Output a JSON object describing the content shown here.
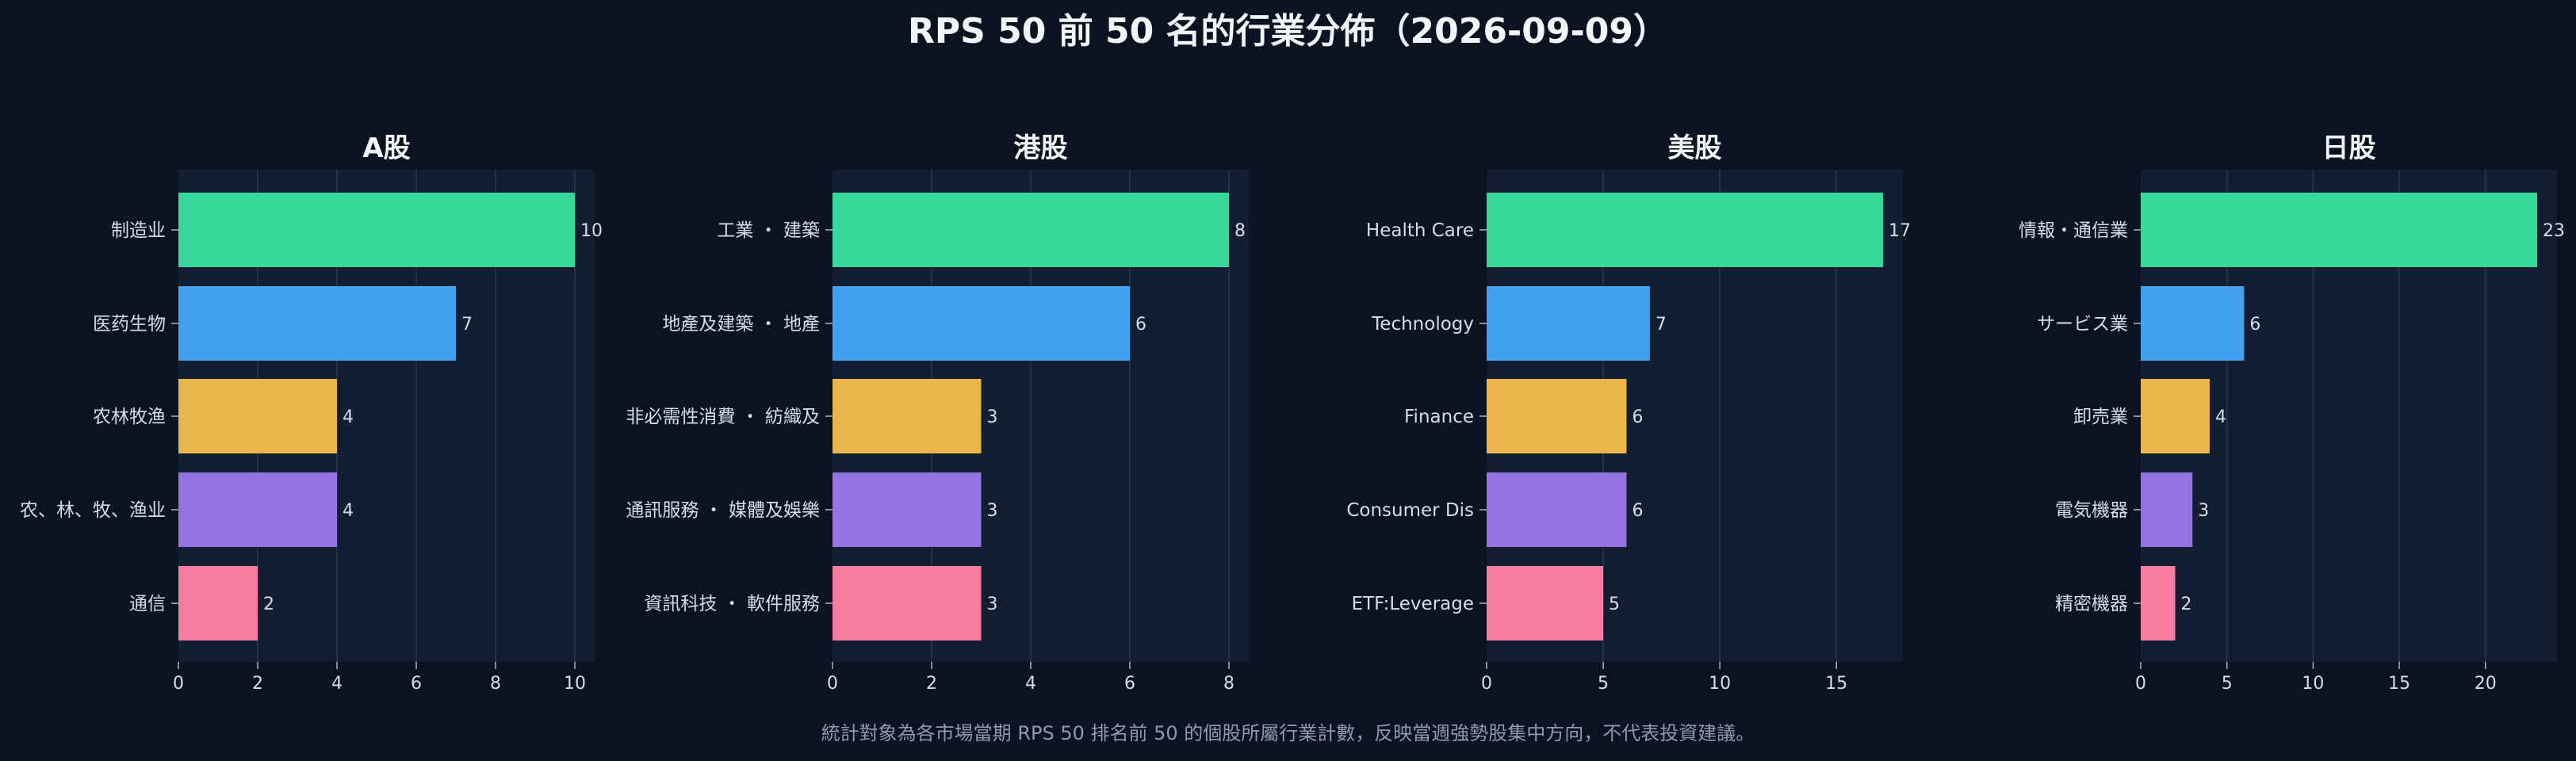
{
  "title": "RPS 50 前 50 名的行業分佈（2026-09-09）",
  "footnote": "統計對象為各市場當期 RPS 50 排名前 50 的個股所屬行業計數，反映當週強勢股集中方向，不代表投資建議。",
  "colors": {
    "background": "#0b1322",
    "panel": "#131e33",
    "grid": "#2a3750",
    "bars": [
      "#37d79a",
      "#42a0f0",
      "#eab54b",
      "#9673e3",
      "#f67ca0"
    ]
  },
  "chart_data": [
    {
      "type": "bar",
      "orientation": "horizontal",
      "title": "A股",
      "categories": [
        "制造业",
        "医药生物",
        "农林牧渔",
        "农、林、牧、渔业",
        "通信"
      ],
      "values": [
        10,
        7,
        4,
        4,
        2
      ],
      "xlim": [
        0,
        10.5
      ],
      "xticks": [
        0,
        2,
        4,
        6,
        8,
        10
      ],
      "grid": true
    },
    {
      "type": "bar",
      "orientation": "horizontal",
      "title": "港股",
      "categories": [
        "工業 ・ 建築",
        "地產及建築 ・ 地產",
        "非必需性消費 ・ 紡織及",
        "通訊服務 ・ 媒體及娛樂",
        "資訊科技 ・ 軟件服務"
      ],
      "values": [
        8,
        6,
        3,
        3,
        3
      ],
      "xlim": [
        0,
        8.4
      ],
      "xticks": [
        0,
        2,
        4,
        6,
        8
      ],
      "grid": true
    },
    {
      "type": "bar",
      "orientation": "horizontal",
      "title": "美股",
      "categories": [
        "Health Care",
        "Technology",
        "Finance",
        "Consumer Dis",
        "ETF:Leverage"
      ],
      "values": [
        17,
        7,
        6,
        6,
        5
      ],
      "xlim": [
        0,
        17.85
      ],
      "xticks": [
        0,
        5,
        10,
        15
      ],
      "grid": true
    },
    {
      "type": "bar",
      "orientation": "horizontal",
      "title": "日股",
      "categories": [
        "情報・通信業",
        "サービス業",
        "卸売業",
        "電気機器",
        "精密機器"
      ],
      "values": [
        23,
        6,
        4,
        3,
        2
      ],
      "xlim": [
        0,
        24.15
      ],
      "xticks": [
        0,
        5,
        10,
        15,
        20
      ],
      "grid": true
    }
  ]
}
